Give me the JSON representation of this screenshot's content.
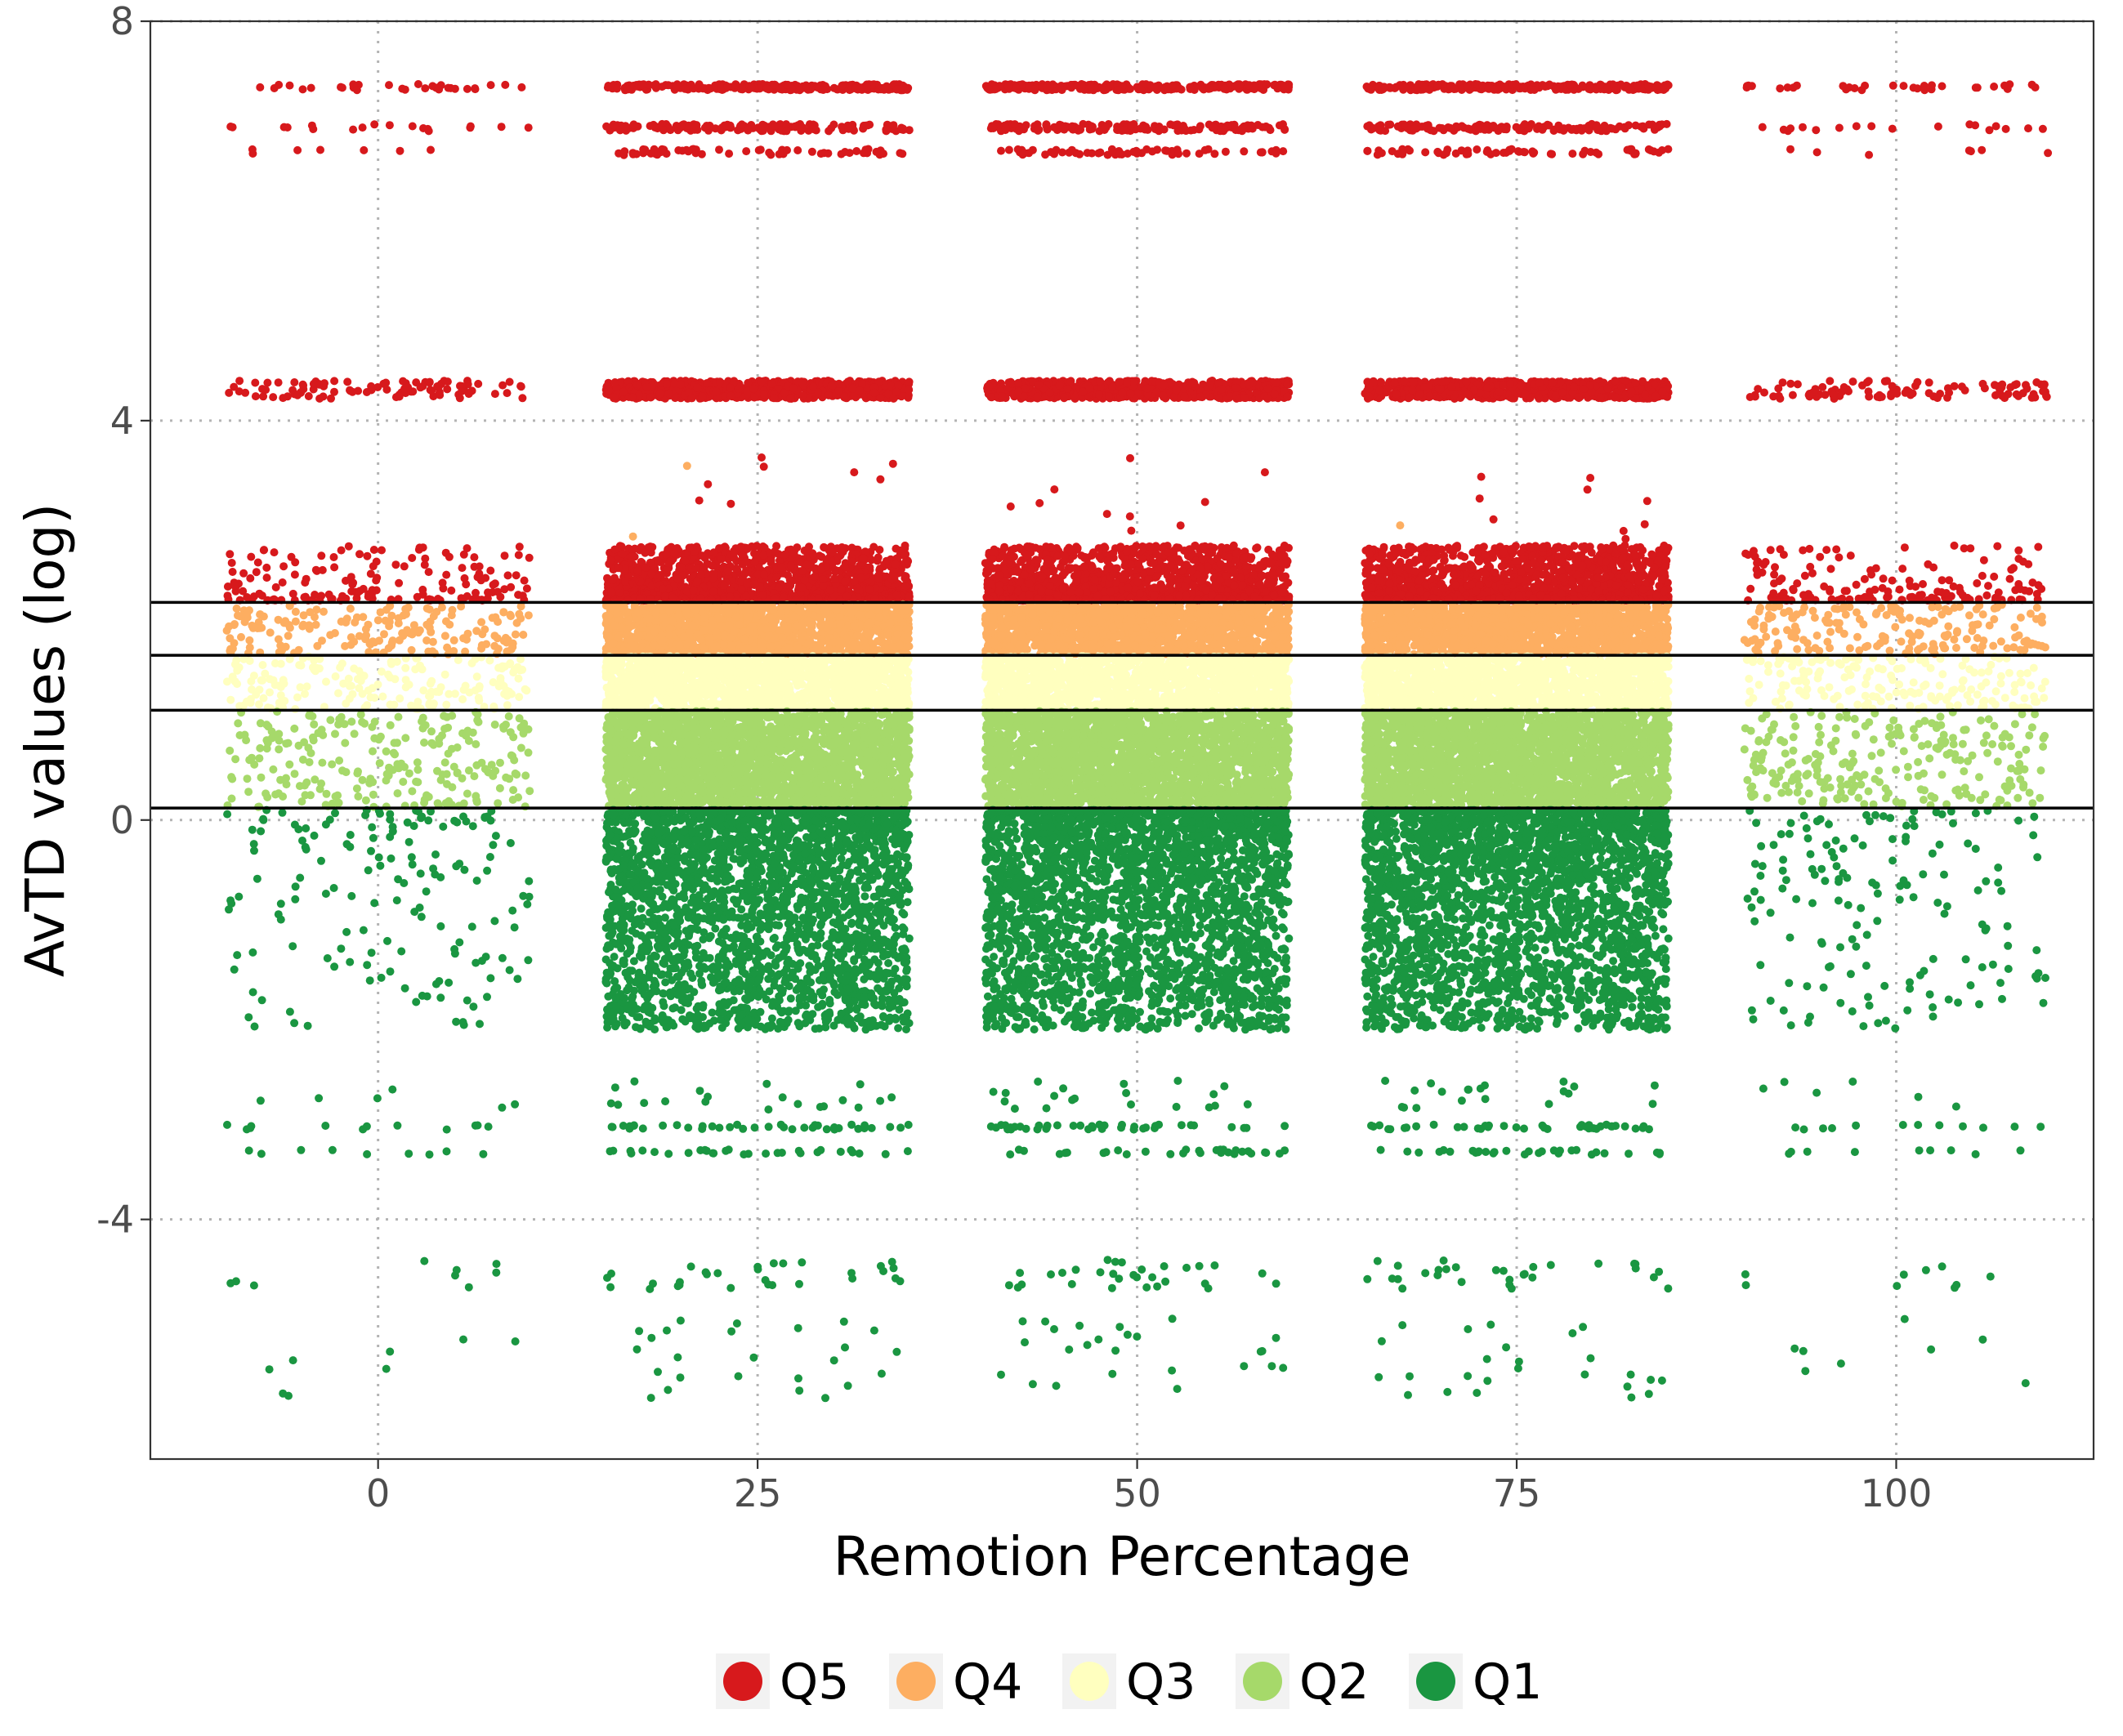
{
  "chart_data": {
    "type": "scatter",
    "title": "",
    "xlabel": "Remotion Percentage",
    "ylabel": "AvTD values (log)",
    "xlim": [
      -15,
      113
    ],
    "ylim": [
      -6.4,
      8
    ],
    "x_ticks": [
      0,
      25,
      50,
      75,
      100
    ],
    "x_tick_labels": [
      "0",
      "25",
      "50",
      "75",
      "100"
    ],
    "y_ticks": [
      -4,
      0,
      4,
      8
    ],
    "y_tick_labels": [
      "-4",
      "0",
      "4",
      "8"
    ],
    "grid": "dotted, major ticks only",
    "legend": {
      "placement": "bottom",
      "items": [
        {
          "label": "Q5",
          "color": "#d7191c"
        },
        {
          "label": "Q4",
          "color": "#fdae61"
        },
        {
          "label": "Q3",
          "color": "#ffffbf"
        },
        {
          "label": "Q2",
          "color": "#a6d96a"
        },
        {
          "label": "Q1",
          "color": "#1a9641"
        }
      ]
    },
    "quantile_thresholds": [
      2.18,
      1.65,
      1.1,
      0.12
    ],
    "groups": [
      {
        "x_center": 0,
        "jitter_width": 10,
        "density": "sparse"
      },
      {
        "x_center": 25,
        "jitter_width": 10,
        "density": "dense"
      },
      {
        "x_center": 50,
        "jitter_width": 10,
        "density": "dense"
      },
      {
        "x_center": 75,
        "jitter_width": 10,
        "density": "dense"
      },
      {
        "x_center": 100,
        "jitter_width": 10,
        "density": "sparse"
      }
    ],
    "series": [
      {
        "name": "Q5",
        "color": "#d7191c",
        "y_clusters": [
          [
            2.2,
            2.75
          ],
          [
            4.22,
            4.45
          ],
          [
            6.65,
            6.72
          ],
          [
            6.9,
            6.98
          ],
          [
            7.3,
            7.38
          ]
        ]
      },
      {
        "name": "Q4",
        "color": "#fdae61",
        "y_clusters": [
          [
            1.65,
            2.18
          ]
        ]
      },
      {
        "name": "Q3",
        "color": "#ffffbf",
        "y_clusters": [
          [
            1.1,
            1.65
          ]
        ]
      },
      {
        "name": "Q2",
        "color": "#a6d96a",
        "y_clusters": [
          [
            0.12,
            1.1
          ]
        ]
      },
      {
        "name": "Q1",
        "color": "#1a9641",
        "y_clusters": [
          [
            -2.1,
            0.12
          ],
          [
            -3.4,
            -2.4
          ],
          [
            -5.8,
            -4.2
          ]
        ]
      }
    ]
  }
}
